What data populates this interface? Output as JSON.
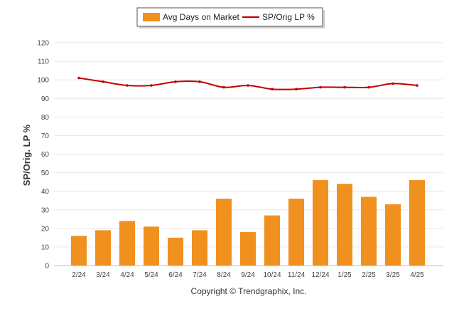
{
  "chart_data": {
    "type": "bar",
    "categories": [
      "2/24",
      "3/24",
      "4/24",
      "5/24",
      "6/24",
      "7/24",
      "8/24",
      "9/24",
      "10/24",
      "11/24",
      "12/24",
      "1/25",
      "2/25",
      "3/25",
      "4/25"
    ],
    "series": [
      {
        "name": "Avg Days on Market",
        "type": "bar",
        "color": "#f0901e",
        "values": [
          16,
          19,
          24,
          21,
          15,
          19,
          36,
          18,
          27,
          36,
          46,
          44,
          37,
          33,
          46
        ]
      },
      {
        "name": "SP/Orig LP %",
        "type": "line",
        "color": "#c00000",
        "values": [
          101,
          99,
          97,
          97,
          99,
          99,
          96,
          97,
          95,
          95,
          96,
          96,
          96,
          98,
          97
        ]
      }
    ],
    "ylabel": "SP/Orig. LP %",
    "ylim": [
      0,
      120
    ],
    "yticks": [
      0,
      10,
      20,
      30,
      40,
      50,
      60,
      70,
      80,
      90,
      100,
      110,
      120
    ],
    "grid": true,
    "legend_position": "top-center"
  },
  "footer": "Copyright © Trendgraphix, Inc."
}
